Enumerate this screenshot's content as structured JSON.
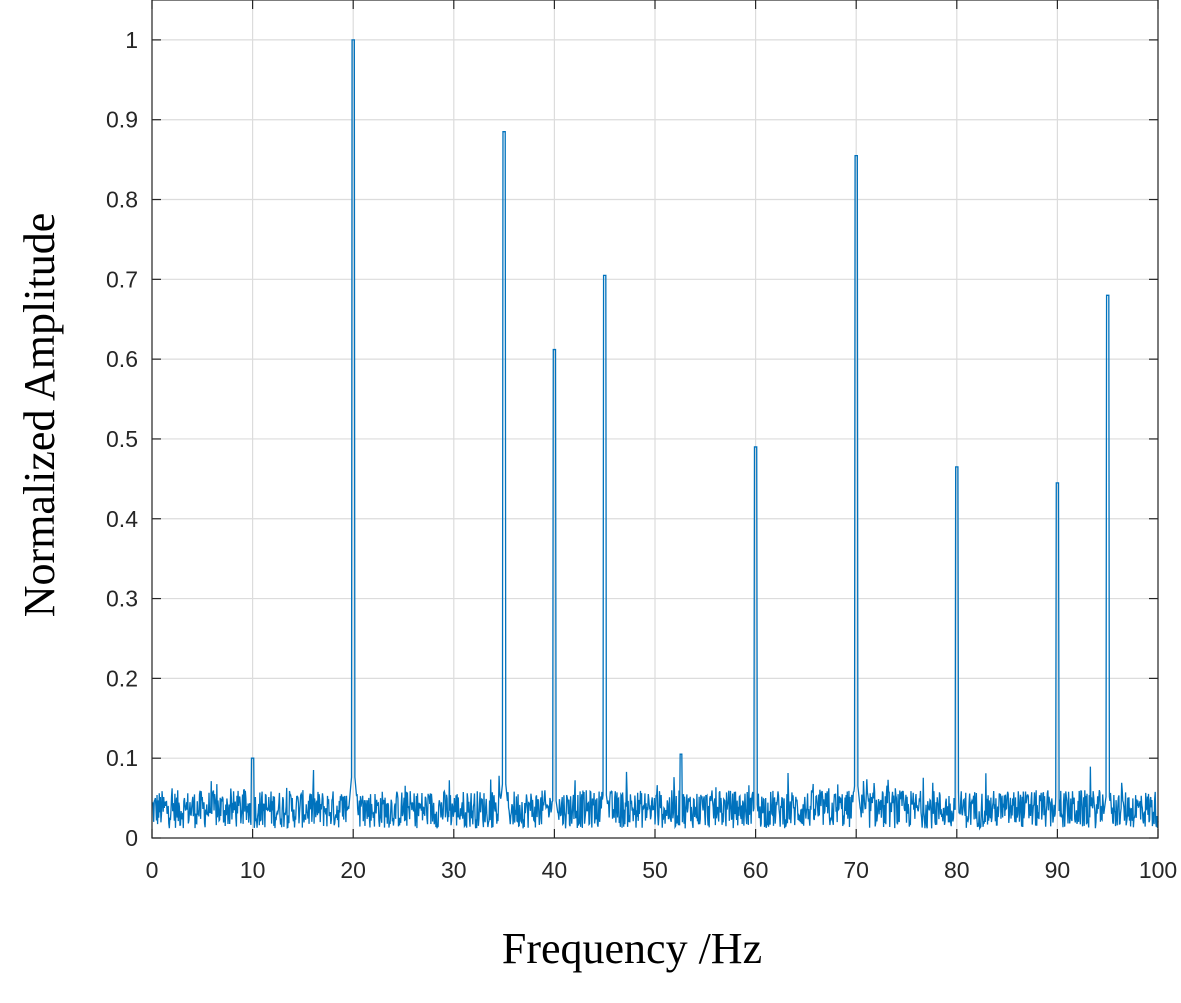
{
  "chart_data": {
    "type": "line",
    "title": "",
    "xlabel": "Frequency  /Hz",
    "ylabel": "Normalized Amplitude",
    "xlim": [
      0,
      100
    ],
    "ylim": [
      0,
      1.05
    ],
    "xticks": [
      0,
      10,
      20,
      30,
      40,
      50,
      60,
      70,
      80,
      90,
      100
    ],
    "yticks": [
      0,
      0.1,
      0.2,
      0.3,
      0.4,
      0.5,
      0.6,
      0.7,
      0.8,
      0.9,
      1
    ],
    "ytick_labels": [
      "0",
      "0.1",
      "0.2",
      "0.3",
      "0.4",
      "0.5",
      "0.6",
      "0.7",
      "0.8",
      "0.9",
      "1"
    ],
    "grid": true,
    "line_color": "#0072BD",
    "series": [
      {
        "peaks": [
          {
            "x": 10,
            "y": 0.1
          },
          {
            "x": 20,
            "y": 1.0
          },
          {
            "x": 35,
            "y": 0.885
          },
          {
            "x": 40,
            "y": 0.612
          },
          {
            "x": 45,
            "y": 0.705
          },
          {
            "x": 52.6,
            "y": 0.105
          },
          {
            "x": 60,
            "y": 0.49
          },
          {
            "x": 70,
            "y": 0.855
          },
          {
            "x": 80,
            "y": 0.465
          },
          {
            "x": 90,
            "y": 0.445
          },
          {
            "x": 95,
            "y": 0.68
          }
        ],
        "noise_floor": [
          0.0,
          0.09
        ]
      }
    ]
  }
}
